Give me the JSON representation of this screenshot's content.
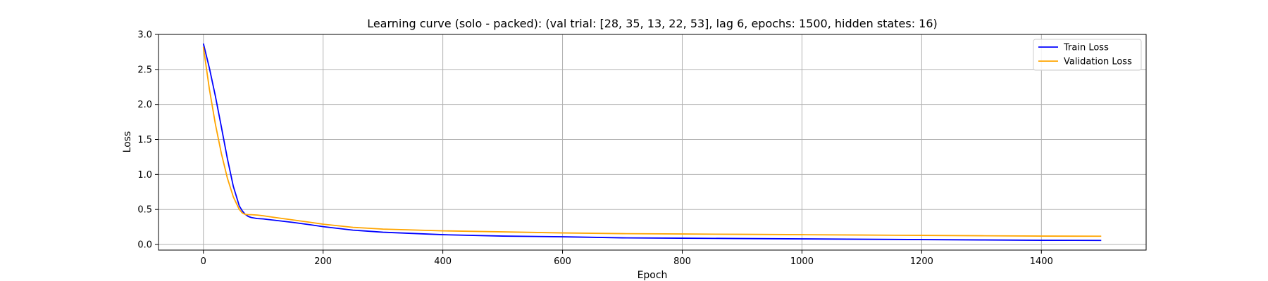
{
  "chart_data": {
    "type": "line",
    "title": "Learning curve (solo - packed): (val trial: [28, 35, 13, 22, 53], lag 6, epochs: 1500, hidden states: 16)",
    "xlabel": "Epoch",
    "ylabel": "Loss",
    "xlim": [
      -75,
      1575
    ],
    "ylim": [
      -0.08,
      3.0
    ],
    "xticks": [
      0,
      200,
      400,
      600,
      800,
      1000,
      1200,
      1400
    ],
    "yticks": [
      0.0,
      0.5,
      1.0,
      1.5,
      2.0,
      2.5,
      3.0
    ],
    "xtick_labels": [
      "0",
      "200",
      "400",
      "600",
      "800",
      "1000",
      "1200",
      "1400"
    ],
    "ytick_labels": [
      "0.0",
      "0.5",
      "1.0",
      "1.5",
      "2.0",
      "2.5",
      "3.0"
    ],
    "grid": true,
    "legend_position": "top-right",
    "series": [
      {
        "name": "Train Loss",
        "color": "#0000ff",
        "x": [
          0,
          10,
          20,
          30,
          40,
          50,
          60,
          65,
          70,
          75,
          80,
          90,
          100,
          120,
          150,
          180,
          200,
          250,
          300,
          400,
          500,
          600,
          700,
          800,
          900,
          1000,
          1100,
          1200,
          1300,
          1400,
          1500
        ],
        "y": [
          2.87,
          2.52,
          2.12,
          1.68,
          1.23,
          0.83,
          0.55,
          0.48,
          0.43,
          0.4,
          0.385,
          0.37,
          0.365,
          0.345,
          0.315,
          0.28,
          0.255,
          0.205,
          0.175,
          0.14,
          0.12,
          0.11,
          0.095,
          0.09,
          0.085,
          0.08,
          0.075,
          0.07,
          0.065,
          0.06,
          0.058
        ]
      },
      {
        "name": "Validation Loss",
        "color": "#ffa500",
        "x": [
          0,
          10,
          20,
          30,
          40,
          50,
          60,
          65,
          70,
          75,
          80,
          90,
          100,
          120,
          150,
          180,
          200,
          250,
          300,
          400,
          500,
          600,
          700,
          800,
          900,
          1000,
          1100,
          1200,
          1300,
          1400,
          1500
        ],
        "y": [
          2.82,
          2.22,
          1.72,
          1.3,
          0.95,
          0.68,
          0.5,
          0.45,
          0.43,
          0.425,
          0.425,
          0.42,
          0.41,
          0.385,
          0.35,
          0.315,
          0.29,
          0.245,
          0.22,
          0.195,
          0.18,
          0.165,
          0.155,
          0.15,
          0.145,
          0.14,
          0.135,
          0.13,
          0.125,
          0.12,
          0.118
        ]
      }
    ]
  }
}
